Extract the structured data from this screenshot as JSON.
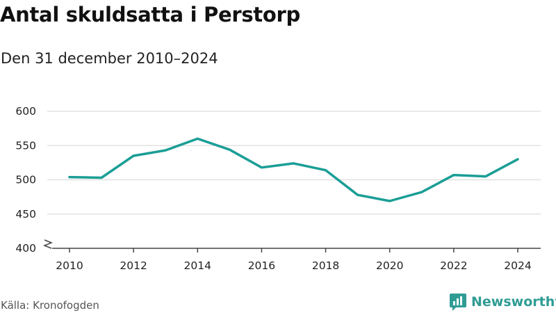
{
  "header": {
    "title": "Antal skuldsatta i Perstorp",
    "subtitle": "Den 31 december 2010–2024"
  },
  "footer": {
    "source": "Källa: Kronofogden",
    "brand": "Newsworthy"
  },
  "colors": {
    "line": "#1a9e96",
    "grid": "#dcdcdc",
    "axis": "#444444",
    "brand": "#2f9c94"
  },
  "icons": {
    "brand_logo": "newsworthy-logo-icon",
    "axis_break": "axis-break-icon"
  },
  "chart_data": {
    "type": "line",
    "title": "Antal skuldsatta i Perstorp",
    "subtitle": "Den 31 december 2010–2024",
    "xlabel": "",
    "ylabel": "",
    "x": [
      2010,
      2011,
      2012,
      2013,
      2014,
      2015,
      2016,
      2017,
      2018,
      2019,
      2020,
      2021,
      2022,
      2023,
      2024
    ],
    "values": [
      504,
      503,
      535,
      543,
      560,
      544,
      518,
      524,
      514,
      478,
      469,
      482,
      507,
      505,
      530
    ],
    "xlim": [
      2010,
      2024
    ],
    "ylim": [
      400,
      600
    ],
    "x_ticks": [
      2010,
      2012,
      2014,
      2016,
      2018,
      2020,
      2022,
      2024
    ],
    "x_tick_labels": [
      "2010",
      "2012",
      "2014",
      "2016",
      "2018",
      "2020",
      "2022",
      "2024"
    ],
    "y_ticks": [
      400,
      450,
      500,
      550,
      600
    ],
    "y_tick_labels": [
      "400",
      "450",
      "500",
      "550",
      "600"
    ],
    "grid": true,
    "axis_break": true,
    "legend": "none"
  }
}
